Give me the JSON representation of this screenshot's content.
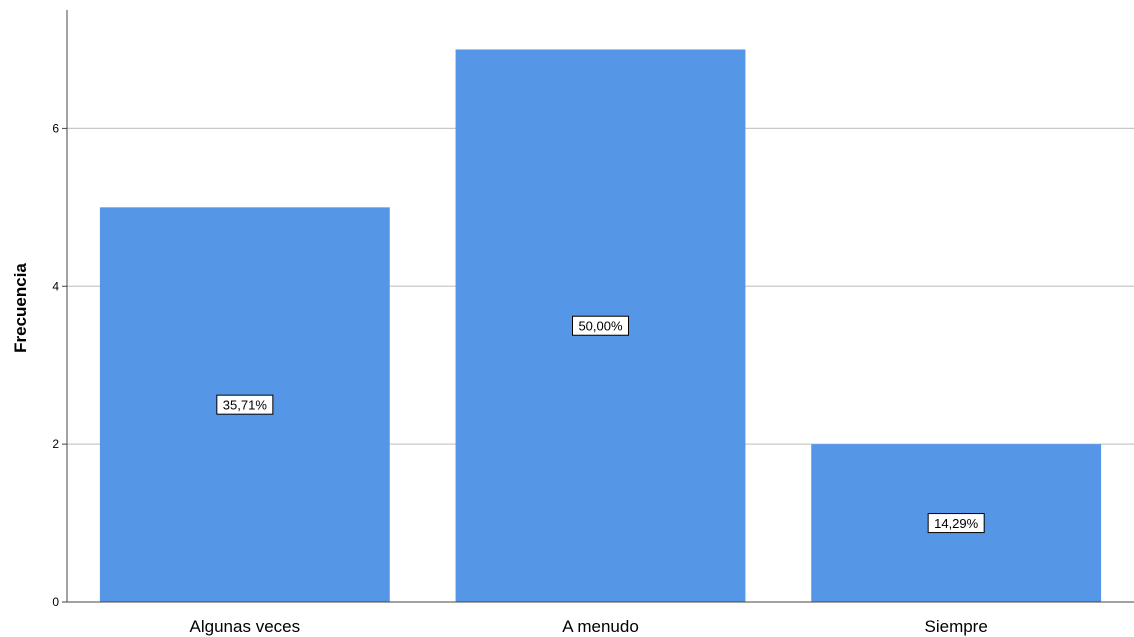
{
  "chart_data": {
    "type": "bar",
    "categories": [
      "Algunas veces",
      "A menudo",
      "Siempre"
    ],
    "values": [
      5,
      7,
      2
    ],
    "data_labels": [
      "35,71%",
      "50,00%",
      "14,29%"
    ],
    "ylabel": "Frecuencia",
    "xlabel": "",
    "ylim": [
      0,
      7.5
    ],
    "yticks": [
      0,
      2,
      4,
      6
    ],
    "ytick_labels": [
      "0",
      "2",
      "4",
      "6"
    ],
    "grid": "horizontal",
    "bar_color": "#5596E6",
    "grid_color": "#C8C8C8",
    "axis_color": "#444444"
  }
}
